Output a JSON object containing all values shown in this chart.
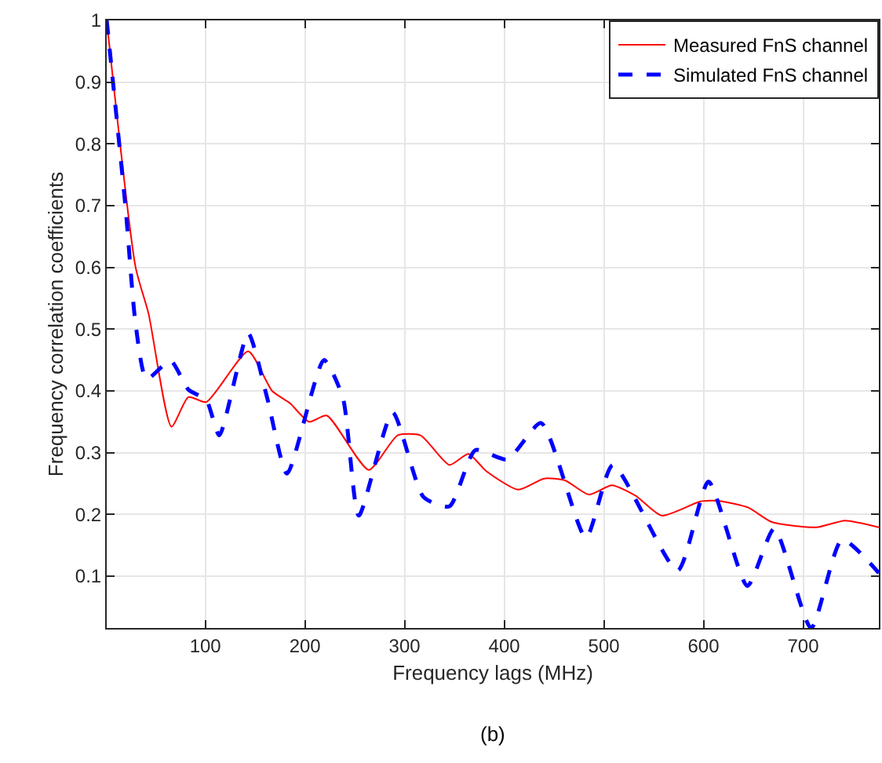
{
  "chart_data": {
    "type": "line",
    "xlabel": "Frequency lags (MHz)",
    "ylabel": "Frequency correlation coefficients",
    "annotations": [
      "(b)"
    ],
    "xlim": [
      1,
      776
    ],
    "ylim": [
      0.016,
      1
    ],
    "xticks": [
      100,
      200,
      300,
      400,
      500,
      600,
      700
    ],
    "yticks": [
      0.1,
      0.2,
      0.3,
      0.4,
      0.5,
      0.6,
      0.7,
      0.8,
      0.9,
      1
    ],
    "grid": true,
    "legend": "top right",
    "series": [
      {
        "name": "Measured FnS channel",
        "color": "#ff0000",
        "line_style": "solid",
        "x": [
          1,
          30,
          43,
          66,
          83,
          101,
          143,
          167,
          185,
          204,
          222,
          264,
          293,
          316,
          345,
          364,
          382,
          414,
          440,
          461,
          485,
          508,
          532,
          558,
          597,
          615,
          645,
          668,
          713,
          742,
          776
        ],
        "values": [
          1,
          0.6,
          0.525,
          0.342,
          0.39,
          0.382,
          0.464,
          0.4,
          0.38,
          0.35,
          0.36,
          0.272,
          0.328,
          0.328,
          0.28,
          0.298,
          0.27,
          0.24,
          0.258,
          0.255,
          0.232,
          0.247,
          0.23,
          0.198,
          0.221,
          0.222,
          0.211,
          0.188,
          0.179,
          0.19,
          0.179
        ]
      },
      {
        "name": "Simulated FnS channel",
        "color": "#0000ff",
        "line_style": "dashed",
        "x": [
          1,
          20,
          30,
          41,
          65,
          83,
          101,
          114,
          143,
          162,
          182,
          219,
          238,
          254,
          288,
          319,
          345,
          371,
          403,
          437,
          482,
          509,
          574,
          605,
          644,
          671,
          708,
          739,
          776
        ],
        "values": [
          1,
          0.695,
          0.508,
          0.419,
          0.449,
          0.402,
          0.385,
          0.328,
          0.493,
          0.389,
          0.266,
          0.45,
          0.389,
          0.198,
          0.365,
          0.228,
          0.213,
          0.304,
          0.289,
          0.348,
          0.162,
          0.28,
          0.109,
          0.253,
          0.084,
          0.177,
          0.016,
          0.159,
          0.105
        ]
      }
    ]
  }
}
